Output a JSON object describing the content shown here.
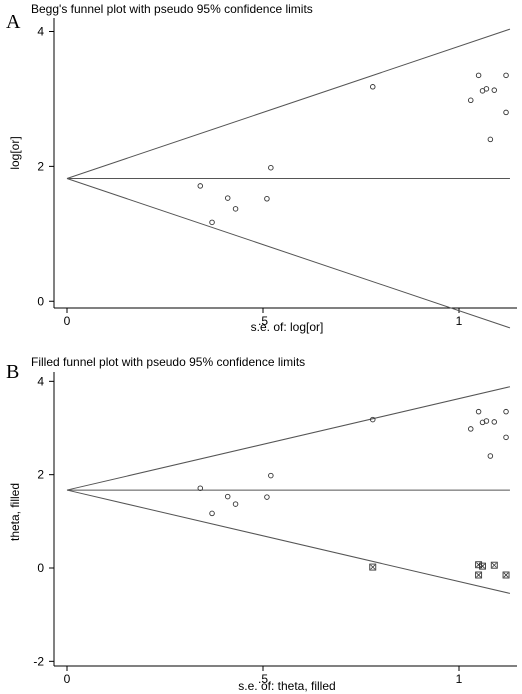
{
  "chart_data": [
    {
      "type": "scatter",
      "panel_label": "A",
      "title": "Begg's funnel plot with pseudo 95% confidence limits",
      "xlabel": "s.e. of: log[or]",
      "ylabel": "log[or]",
      "xlim": [
        0,
        1.13
      ],
      "ylim": [
        -0.1,
        4.2
      ],
      "xticks": [
        0,
        0.5,
        1
      ],
      "xtick_labels": [
        "0",
        ".5",
        "1"
      ],
      "yticks": [
        0,
        2,
        4
      ],
      "ytick_labels": [
        "0",
        "2",
        "4"
      ],
      "pooled_estimate": 1.82,
      "pseudo_ci_x_end": 1.13,
      "series": [
        {
          "marker": "circle",
          "points": [
            [
              0.34,
              1.71
            ],
            [
              0.37,
              1.17
            ],
            [
              0.41,
              1.53
            ],
            [
              0.43,
              1.37
            ],
            [
              0.51,
              1.52
            ],
            [
              0.52,
              1.98
            ],
            [
              0.78,
              3.18
            ],
            [
              1.03,
              2.98
            ],
            [
              1.05,
              3.35
            ],
            [
              1.06,
              3.12
            ],
            [
              1.07,
              3.15
            ],
            [
              1.08,
              2.4
            ],
            [
              1.09,
              3.13
            ],
            [
              1.12,
              2.8
            ],
            [
              1.12,
              3.35
            ]
          ]
        }
      ]
    },
    {
      "type": "scatter",
      "panel_label": "B",
      "title": "Filled funnel plot with pseudo 95% confidence limits",
      "xlabel": "s.e. of: theta, filled",
      "ylabel": "theta, filled",
      "xlim": [
        0,
        1.13
      ],
      "ylim": [
        -2.1,
        4.2
      ],
      "xticks": [
        0,
        0.5,
        1
      ],
      "xtick_labels": [
        "0",
        ".5",
        "1"
      ],
      "yticks": [
        -2,
        0,
        2,
        4
      ],
      "ytick_labels": [
        "-2",
        "0",
        "2",
        "4"
      ],
      "pooled_estimate": 1.67,
      "pseudo_ci_x_end": 1.13,
      "series": [
        {
          "marker": "circle",
          "points": [
            [
              0.34,
              1.71
            ],
            [
              0.37,
              1.17
            ],
            [
              0.41,
              1.53
            ],
            [
              0.43,
              1.37
            ],
            [
              0.51,
              1.52
            ],
            [
              0.52,
              1.98
            ],
            [
              0.78,
              3.18
            ],
            [
              1.03,
              2.98
            ],
            [
              1.05,
              3.35
            ],
            [
              1.06,
              3.12
            ],
            [
              1.07,
              3.15
            ],
            [
              1.08,
              2.4
            ],
            [
              1.09,
              3.13
            ],
            [
              1.12,
              2.8
            ],
            [
              1.12,
              3.35
            ]
          ]
        },
        {
          "marker": "boxed-x",
          "points": [
            [
              0.78,
              0.02
            ],
            [
              1.05,
              -0.15
            ],
            [
              1.05,
              0.07
            ],
            [
              1.06,
              0.04
            ],
            [
              1.09,
              0.06
            ],
            [
              1.12,
              -0.15
            ]
          ]
        }
      ]
    }
  ]
}
